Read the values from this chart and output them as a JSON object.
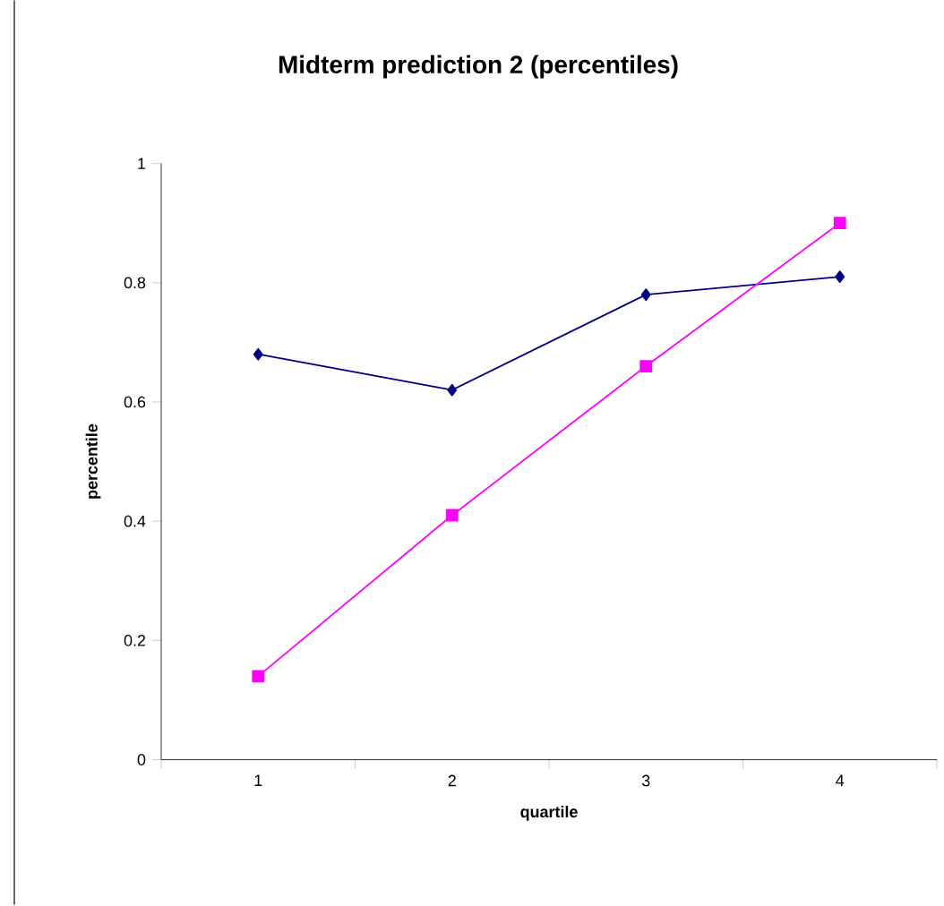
{
  "chart_data": {
    "type": "line",
    "title": "Midterm prediction 2 (percentiles)",
    "xlabel": "quartile",
    "ylabel": "percentile",
    "categories": [
      "1",
      "2",
      "3",
      "4"
    ],
    "series": [
      {
        "color": "#000080",
        "marker": "diamond",
        "values": [
          0.68,
          0.62,
          0.78,
          0.81
        ]
      },
      {
        "color": "#ff00ff",
        "marker": "square",
        "values": [
          0.14,
          0.41,
          0.66,
          0.9
        ]
      }
    ],
    "ylim": [
      0,
      1
    ],
    "yticks": [
      0,
      {
        "value": 0.2,
        "label": "0.2"
      },
      {
        "value": 0.4,
        "label": "0.4"
      },
      {
        "value": 0.6,
        "label": "0.6"
      },
      {
        "value": 0.8,
        "label": "0.8"
      },
      1
    ],
    "grid": false
  }
}
